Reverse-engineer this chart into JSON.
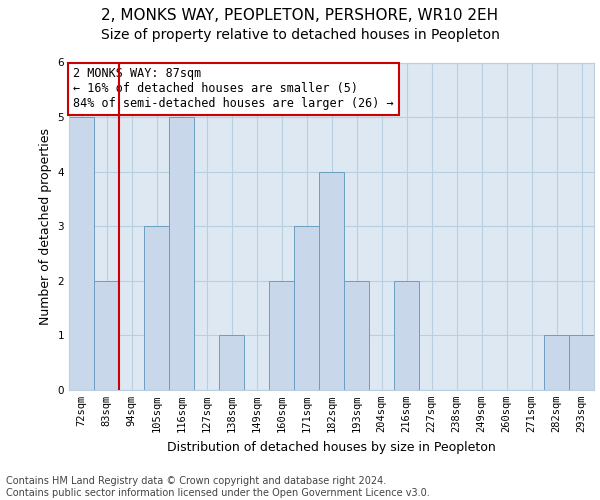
{
  "title1": "2, MONKS WAY, PEOPLETON, PERSHORE, WR10 2EH",
  "title2": "Size of property relative to detached houses in Peopleton",
  "xlabel": "Distribution of detached houses by size in Peopleton",
  "ylabel": "Number of detached properties",
  "categories": [
    "72sqm",
    "83sqm",
    "94sqm",
    "105sqm",
    "116sqm",
    "127sqm",
    "138sqm",
    "149sqm",
    "160sqm",
    "171sqm",
    "182sqm",
    "193sqm",
    "204sqm",
    "216sqm",
    "227sqm",
    "238sqm",
    "249sqm",
    "260sqm",
    "271sqm",
    "282sqm",
    "293sqm"
  ],
  "values": [
    5,
    2,
    0,
    3,
    5,
    0,
    1,
    0,
    2,
    3,
    4,
    2,
    0,
    2,
    0,
    0,
    0,
    0,
    0,
    1,
    1
  ],
  "bar_color": "#c8d8ea",
  "bar_edge_color": "#6a9ec0",
  "grid_color": "#b8cfe0",
  "background_color": "#dde8f2",
  "annotation_text": "2 MONKS WAY: 87sqm\n← 16% of detached houses are smaller (5)\n84% of semi-detached houses are larger (26) →",
  "annotation_box_color": "#ffffff",
  "annotation_box_edge_color": "#cc0000",
  "vline_color": "#cc0000",
  "ylim": [
    0,
    6
  ],
  "yticks": [
    0,
    1,
    2,
    3,
    4,
    5,
    6
  ],
  "footer_text": "Contains HM Land Registry data © Crown copyright and database right 2024.\nContains public sector information licensed under the Open Government Licence v3.0.",
  "title1_fontsize": 11,
  "title2_fontsize": 10,
  "annotation_fontsize": 8.5,
  "tick_fontsize": 7.5,
  "ylabel_fontsize": 9,
  "xlabel_fontsize": 9,
  "footer_fontsize": 7
}
